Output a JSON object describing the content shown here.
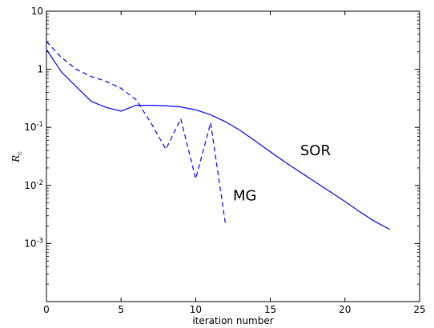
{
  "chart_data": {
    "type": "line",
    "title": "",
    "xlabel": "iteration number",
    "ylabel": "R",
    "ylabel_subscript": "c",
    "xlim": [
      0,
      25
    ],
    "ylim": [
      0.0001,
      10
    ],
    "yscale": "log",
    "grid": false,
    "xticks": [
      0,
      5,
      10,
      15,
      20,
      25
    ],
    "yticks": [
      {
        "value": 10,
        "base": "10",
        "exp": ""
      },
      {
        "value": 1,
        "base": "1",
        "exp": ""
      },
      {
        "value": 0.1,
        "base": "10",
        "exp": "-1"
      },
      {
        "value": 0.01,
        "base": "10",
        "exp": "-2"
      },
      {
        "value": 0.001,
        "base": "10",
        "exp": "-3"
      }
    ],
    "series": [
      {
        "label": "SOR",
        "color": "#0000ff",
        "style": "solid",
        "x": [
          0,
          1,
          2,
          3,
          4,
          5,
          6,
          7,
          8,
          9,
          10,
          11,
          12,
          13,
          14,
          15,
          16,
          17,
          18,
          19,
          20,
          21,
          22,
          23
        ],
        "y": [
          2.2,
          0.9,
          0.5,
          0.28,
          0.22,
          0.19,
          0.24,
          0.24,
          0.235,
          0.225,
          0.2,
          0.165,
          0.125,
          0.088,
          0.058,
          0.038,
          0.025,
          0.017,
          0.0115,
          0.0078,
          0.0053,
          0.0035,
          0.0024,
          0.00175
        ],
        "annotation": {
          "text": "SOR",
          "x": 17,
          "y": 0.033
        }
      },
      {
        "label": "MG",
        "color": "#0000ff",
        "style": "dashed",
        "x": [
          0,
          1,
          2,
          3,
          4,
          5,
          6,
          7,
          8,
          9,
          10,
          11,
          12
        ],
        "y": [
          3.0,
          1.6,
          1.0,
          0.75,
          0.62,
          0.47,
          0.3,
          0.12,
          0.042,
          0.14,
          0.013,
          0.12,
          0.0021
        ],
        "annotation": {
          "text": "MG",
          "x": 12.5,
          "y": 0.0055
        }
      }
    ]
  }
}
